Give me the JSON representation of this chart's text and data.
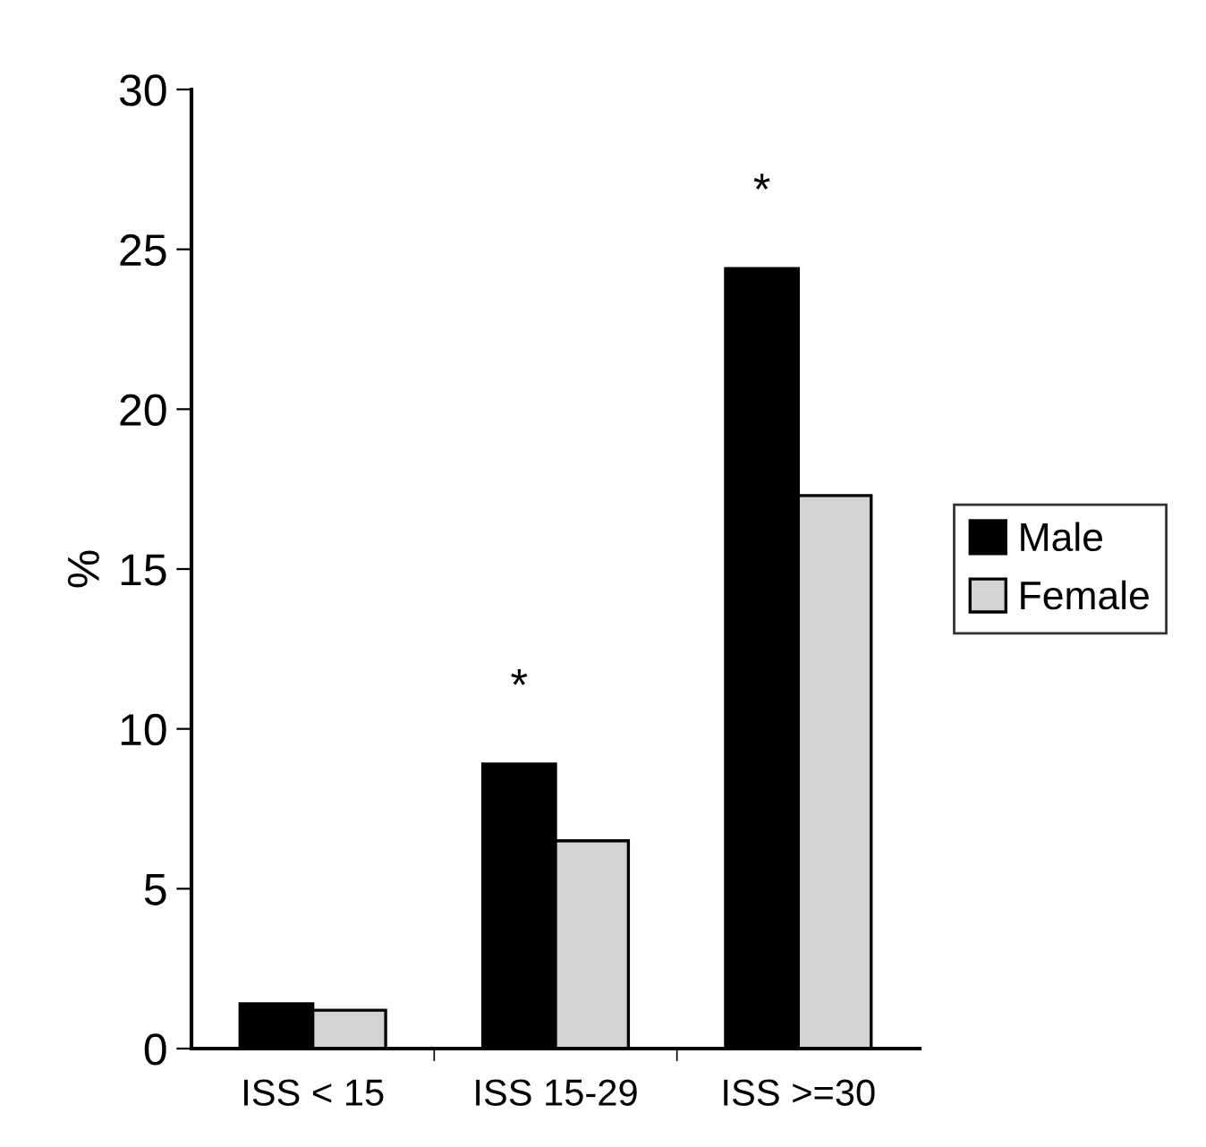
{
  "chart_data": {
    "type": "bar",
    "ylabel": "%",
    "categories": [
      "ISS < 15",
      "ISS 15-29",
      "ISS >=30"
    ],
    "series": [
      {
        "name": "Male",
        "color": "#000000",
        "values": [
          1.4,
          8.9,
          24.4
        ]
      },
      {
        "name": "Female",
        "color": "#d3d3d3",
        "values": [
          1.2,
          6.5,
          17.3
        ]
      }
    ],
    "ylim": [
      0,
      30
    ],
    "yticks": [
      0,
      5,
      10,
      15,
      20,
      25,
      30
    ],
    "grid": false,
    "legend": "right",
    "annotations": [
      "*",
      "*"
    ]
  }
}
